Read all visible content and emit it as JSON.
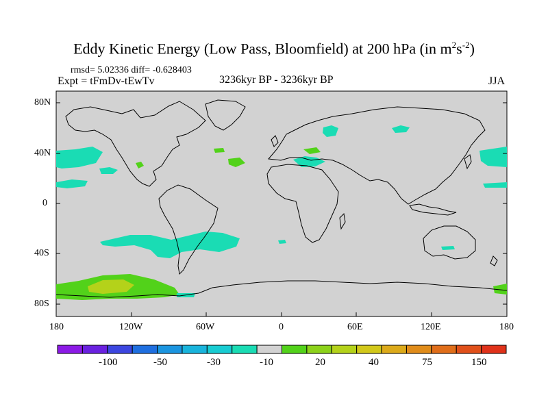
{
  "title": {
    "main": "Eddy Kinetic Energy (Low Pass, Bloomfield) at 200 hPa (in m",
    "sup1": "2",
    "mid": "s",
    "sup2": "-2",
    "end": ")"
  },
  "stats": "rmsd= 5.02336 diff= -0.628403",
  "expt": "Expt = tFmDv-tEwTv",
  "period": "3236kyr BP - 3236kyr BP",
  "season": "JJA",
  "map": {
    "ocean_land_color": "#d2d2d2",
    "lat_ticks": [
      "80N",
      "40N",
      "0",
      "40S",
      "80S"
    ],
    "lon_ticks": [
      "180",
      "120W",
      "60W",
      "0",
      "60E",
      "120E",
      "180"
    ]
  },
  "colorbar": {
    "colors": [
      "#8c1ae6",
      "#6a21e0",
      "#3c46e0",
      "#1f6fe0",
      "#1b95e0",
      "#19b4dc",
      "#18ccd2",
      "#1adcb4",
      "#d2d2d2",
      "#52d21a",
      "#8cd21a",
      "#b4d21a",
      "#d2c81a",
      "#dcaa1a",
      "#e08c1a",
      "#e06e1a",
      "#e0501a",
      "#e0321a"
    ],
    "labels": [
      "-100",
      "-50",
      "-30",
      "-10",
      "20",
      "40",
      "75",
      "150"
    ]
  },
  "anomalies": [
    {
      "name": "tropical-n-pacific-west",
      "color": "#1adcb4"
    },
    {
      "name": "south-pacific-band",
      "color": "#1adcb4"
    },
    {
      "name": "antarctic-pacific",
      "color": "#52d21a"
    },
    {
      "name": "antarctic-pacific-core",
      "color": "#b4d21a"
    },
    {
      "name": "north-atlantic",
      "color": "#52d21a"
    }
  ]
}
